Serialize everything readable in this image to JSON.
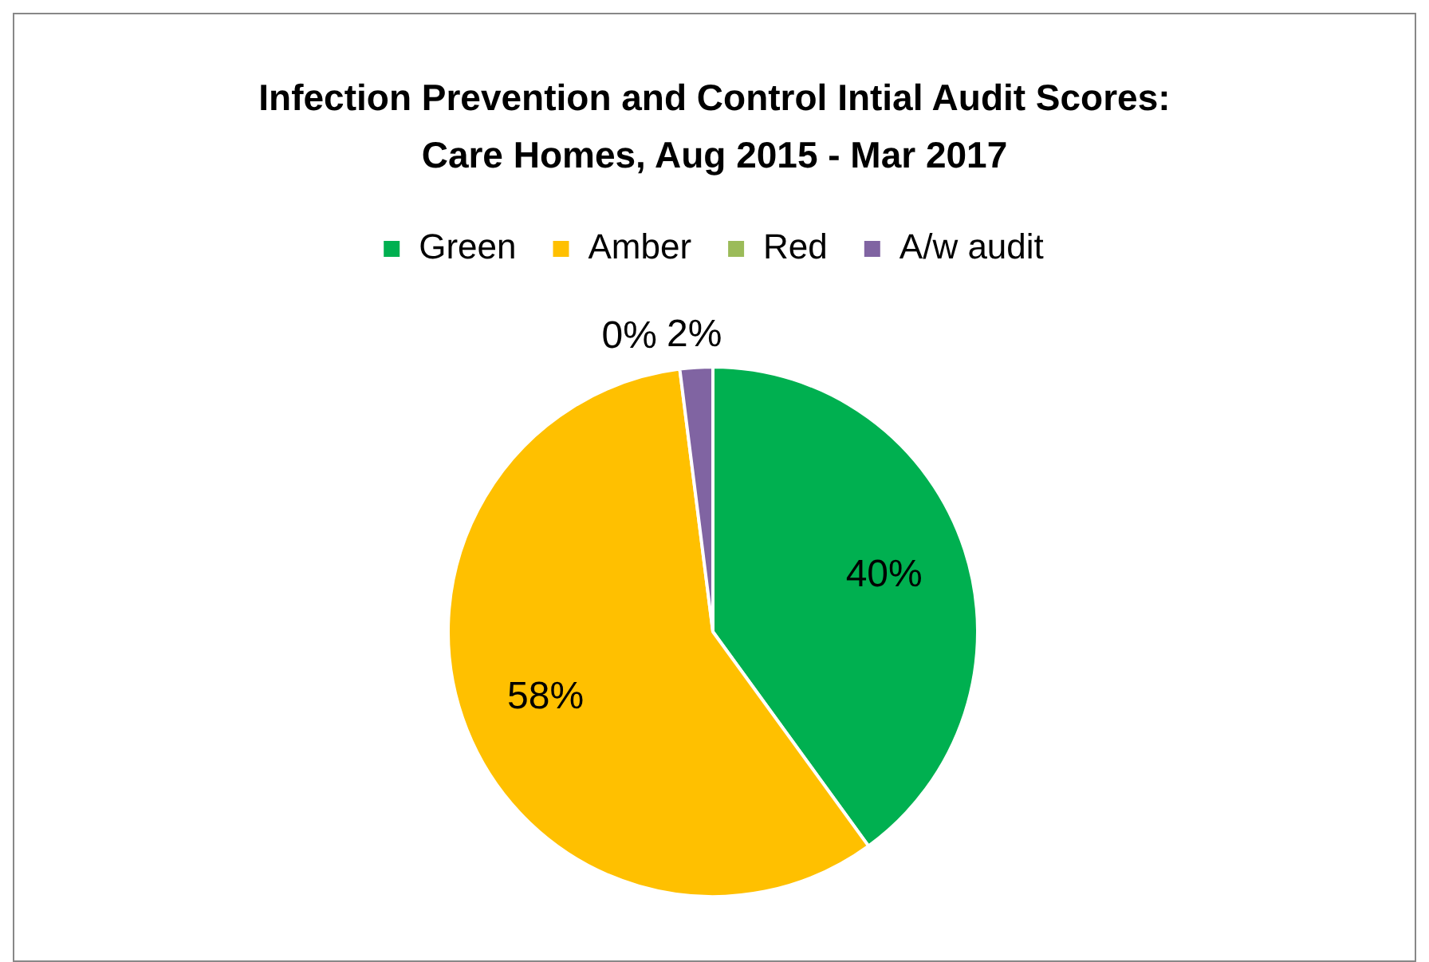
{
  "chart_data": {
    "type": "pie",
    "title": "Infection Prevention and Control Intial Audit Scores: Care Homes, Aug 2015 - Mar 2017",
    "categories": [
      "Green",
      "Amber",
      "Red",
      "A/w audit"
    ],
    "values": [
      40,
      58,
      0,
      2
    ],
    "colors": [
      "#00b050",
      "#ffc000",
      "#9bbb59",
      "#8064a2"
    ],
    "value_labels": [
      "40%",
      "58%",
      "0%",
      "2%"
    ],
    "legend": "top"
  }
}
